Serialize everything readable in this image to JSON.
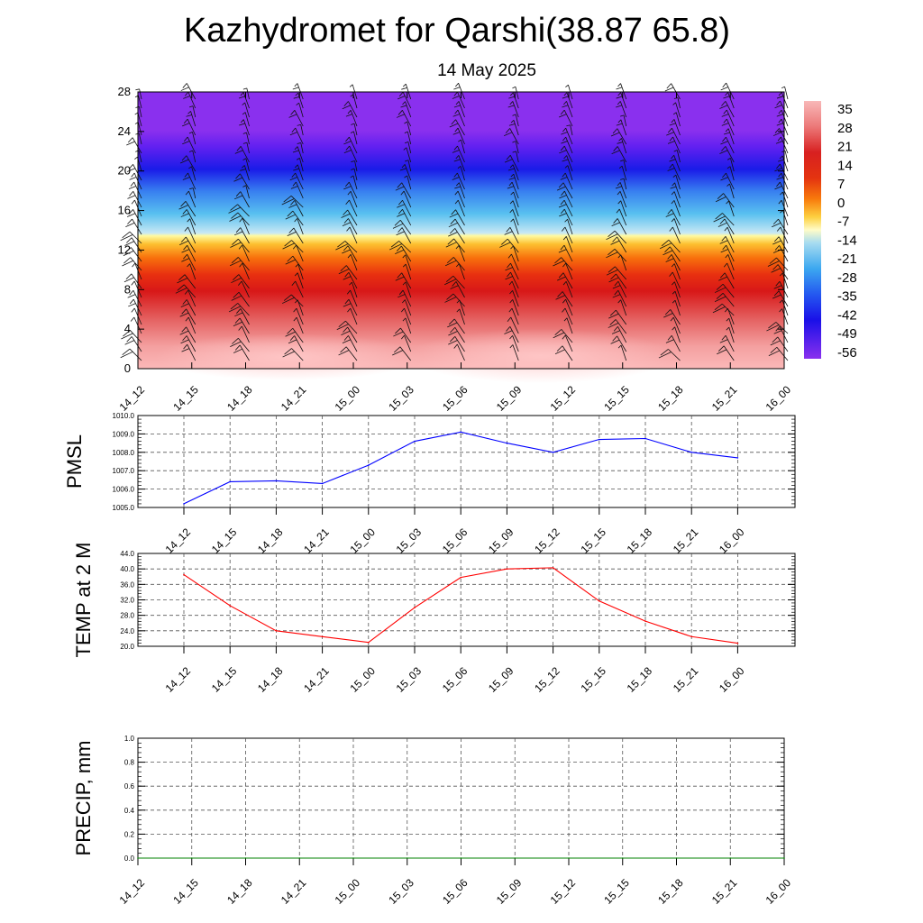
{
  "title": "Kazhydromet for Qarshi(38.87 65.8)",
  "subtitle": "14 May 2025",
  "time_labels": [
    "14_12",
    "14_15",
    "14_18",
    "14_21",
    "15_00",
    "15_03",
    "15_06",
    "15_09",
    "15_12",
    "15_15",
    "15_18",
    "15_21",
    "16_00"
  ],
  "chart_data": [
    {
      "type": "heatmap",
      "panel": "upper-air",
      "yticks": [
        0,
        4,
        8,
        12,
        16,
        20,
        24,
        28
      ],
      "ylim": [
        0,
        28
      ],
      "colorbar_labels": [
        "35",
        "28",
        "21",
        "14",
        "7",
        "0",
        "-7",
        "-14",
        "-21",
        "-28",
        "-35",
        "-42",
        "-49",
        "-56"
      ],
      "palette": {
        "35": "#f8b4b4",
        "28": "#ee8888",
        "21": "#e05050",
        "14": "#d01818",
        "7": "#f04a10",
        "0": "#fa8c10",
        "-7": "#fde040",
        "-14": "#fffbd0",
        "-21": "#a8dcf0",
        "-28": "#40b4f0",
        "-35": "#3070f0",
        "-42": "#1a28e8",
        "-49": "#3010f0",
        "-56": "#8a30ee"
      },
      "wind_barbs": true
    },
    {
      "type": "line",
      "ylabel": "PMSL",
      "ylim": [
        1005.0,
        1010.0
      ],
      "yticks": [
        "1005.0",
        "1006.0",
        "1007.0",
        "1008.0",
        "1009.0",
        "1010.0"
      ],
      "x": [
        "14_12",
        "14_15",
        "14_18",
        "14_21",
        "15_00",
        "15_03",
        "15_06",
        "15_09",
        "15_12",
        "15_15",
        "15_18",
        "15_21",
        "16_00"
      ],
      "values": [
        1005.2,
        1006.4,
        1006.45,
        1006.3,
        1007.3,
        1008.6,
        1009.1,
        1008.5,
        1008.0,
        1008.7,
        1008.75,
        1008.0,
        1007.7
      ],
      "color": "#0000ff",
      "grid": true
    },
    {
      "type": "line",
      "ylabel": "TEMP at 2 M",
      "ylim": [
        20.0,
        44.0
      ],
      "yticks": [
        "20.0",
        "24.0",
        "28.0",
        "32.0",
        "36.0",
        "40.0",
        "44.0"
      ],
      "x": [
        "14_12",
        "14_15",
        "14_18",
        "14_21",
        "15_00",
        "15_03",
        "15_06",
        "15_09",
        "15_12",
        "15_15",
        "15_18",
        "15_21",
        "16_00"
      ],
      "values": [
        38.5,
        30.5,
        24.0,
        22.5,
        21.0,
        30.0,
        37.8,
        40.0,
        40.3,
        31.7,
        26.5,
        22.5,
        20.8
      ],
      "color": "#ff0000",
      "grid": true
    },
    {
      "type": "line",
      "ylabel": "PRECIP, mm",
      "ylim": [
        0.0,
        1.0
      ],
      "yticks": [
        "0.0",
        "0.2",
        "0.4",
        "0.6",
        "0.8",
        "1.0"
      ],
      "x": [
        "14_12",
        "14_15",
        "14_18",
        "14_21",
        "15_00",
        "15_03",
        "15_06",
        "15_09",
        "15_12",
        "15_15",
        "15_18",
        "15_21",
        "16_00"
      ],
      "values": [
        0,
        0,
        0,
        0,
        0,
        0,
        0,
        0,
        0,
        0,
        0,
        0,
        0
      ],
      "color": "#008000",
      "grid": true
    }
  ]
}
